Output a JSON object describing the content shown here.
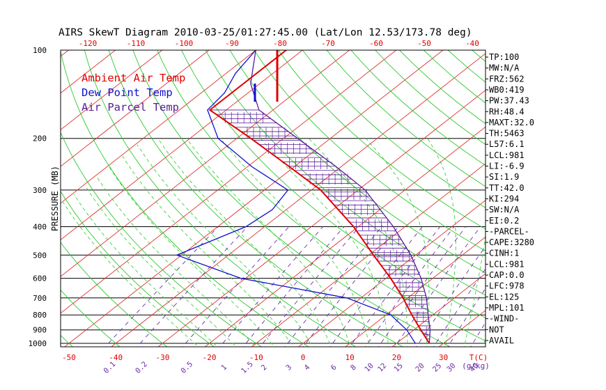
{
  "chart_data": {
    "type": "line",
    "title": "AIRS SkewT Diagram 2010-03-25/01:27:45.00 (Lat/Lon 12.53/173.78 deg)",
    "ylabel": "PRESSURE (MB)",
    "ylim": [
      1050,
      100
    ],
    "pressure_ticks": [
      "100",
      "200",
      "300",
      "400",
      "500",
      "600",
      "700",
      "800",
      "900",
      "1000"
    ],
    "top_temp_ticks": [
      "-120",
      "-110",
      "-100",
      "-90",
      "-80",
      "-70",
      "-60",
      "-50",
      "-40"
    ],
    "bottom_temp_ticks": [
      "-50",
      "-40",
      "-30",
      "-20",
      "-10",
      "0",
      "10",
      "20",
      "30"
    ],
    "bottom_temp_unit": "T(C)",
    "mixing_ratio_labels": [
      "0.1",
      "0.2",
      "0.5",
      "1",
      "1.5",
      "2",
      "3",
      "4",
      "6",
      "8",
      "10",
      "12",
      "15",
      "20",
      "25",
      "30",
      "40"
    ],
    "mixing_ratio_unit": "(g/kg)",
    "legend": [
      {
        "label": "Ambient Air Temp",
        "color": "#e00000"
      },
      {
        "label": "Dew Point Temp",
        "color": "#1010d0"
      },
      {
        "label": "Air Parcel Temp",
        "color": "#5a1a9a"
      }
    ],
    "series": [
      {
        "name": "Ambient Air Temp",
        "color": "#e00000",
        "points": [
          [
            100,
            -83.5
          ],
          [
            160,
            -83.5
          ],
          [
            200,
            -67
          ],
          [
            250,
            -51
          ],
          [
            300,
            -38
          ],
          [
            400,
            -21
          ],
          [
            500,
            -9
          ],
          [
            600,
            1
          ],
          [
            700,
            9
          ],
          [
            800,
            15.5
          ],
          [
            900,
            21.5
          ],
          [
            1000,
            27
          ]
        ]
      },
      {
        "name": "Dew Point Temp",
        "color": "#1010d0",
        "points": [
          [
            100,
            -90
          ],
          [
            120,
            -88
          ],
          [
            140,
            -85
          ],
          [
            160,
            -84
          ],
          [
            200,
            -74
          ],
          [
            250,
            -59
          ],
          [
            300,
            -45
          ],
          [
            350,
            -43
          ],
          [
            400,
            -44
          ],
          [
            500,
            -51
          ],
          [
            600,
            -31
          ],
          [
            700,
            -3
          ],
          [
            800,
            11
          ],
          [
            900,
            18.5
          ],
          [
            1000,
            24
          ]
        ]
      },
      {
        "name": "Air Parcel Temp",
        "color": "#5a1a9a",
        "points": [
          [
            100,
            -90
          ],
          [
            130,
            -82
          ],
          [
            160,
            -73
          ],
          [
            200,
            -57
          ],
          [
            250,
            -41
          ],
          [
            300,
            -28.5
          ],
          [
            400,
            -12.5
          ],
          [
            500,
            -1
          ],
          [
            600,
            7.5
          ],
          [
            700,
            14
          ],
          [
            800,
            19
          ],
          [
            900,
            23.5
          ],
          [
            1000,
            27
          ]
        ]
      }
    ],
    "indices": [
      "TP:100",
      "MW:N/A",
      "FRZ:562",
      "WB0:419",
      "PW:37.43",
      "RH:48.4",
      "MAXT:32.0",
      "TH:5463",
      "L57:6.1",
      "LCL:981",
      "LI:-6.9",
      "SI:1.9",
      "TT:42.0",
      "KI:294",
      "SW:N/A",
      "EI:0.2",
      "-PARCEL-",
      "CAPE:3280",
      "CINH:1",
      "LCL:981",
      "CAP:0.0",
      "LFC:978",
      "EL:125",
      "MPL:101",
      "-WIND-",
      "NOT",
      "AVAIL"
    ]
  }
}
